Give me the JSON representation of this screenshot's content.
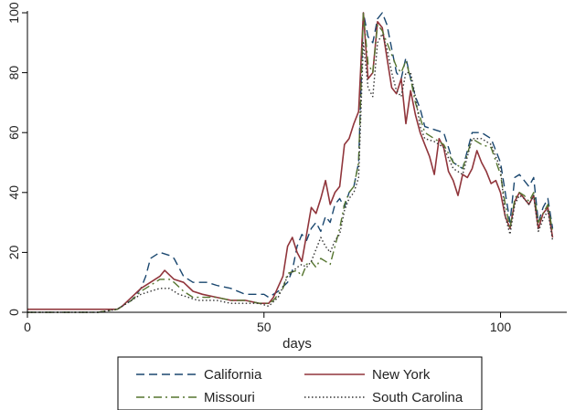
{
  "chart_data": {
    "type": "line",
    "title": "",
    "xlabel": "days",
    "ylabel": "",
    "xlim": [
      0,
      114
    ],
    "ylim": [
      0,
      100
    ],
    "xticks": [
      0,
      50,
      100
    ],
    "yticks": [
      0,
      20,
      40,
      60,
      80,
      100
    ],
    "grid": false,
    "legend_placement": "bottom",
    "series": [
      {
        "name": "California",
        "color": "#1a476f",
        "dash": "dashed",
        "points": [
          [
            0,
            1
          ],
          [
            5,
            1
          ],
          [
            10,
            1
          ],
          [
            15,
            1
          ],
          [
            19,
            1
          ],
          [
            20,
            2
          ],
          [
            22,
            4
          ],
          [
            24,
            8
          ],
          [
            25,
            12
          ],
          [
            26,
            18
          ],
          [
            28,
            20
          ],
          [
            30,
            19
          ],
          [
            31,
            18
          ],
          [
            33,
            12
          ],
          [
            35,
            10
          ],
          [
            38,
            10
          ],
          [
            40,
            9
          ],
          [
            43,
            8
          ],
          [
            46,
            6
          ],
          [
            50,
            6
          ],
          [
            51,
            5
          ],
          [
            53,
            7
          ],
          [
            55,
            10
          ],
          [
            56,
            14
          ],
          [
            57,
            22
          ],
          [
            58,
            26
          ],
          [
            59,
            24
          ],
          [
            60,
            28
          ],
          [
            61,
            30
          ],
          [
            62,
            27
          ],
          [
            63,
            32
          ],
          [
            64,
            30
          ],
          [
            65,
            36
          ],
          [
            66,
            38
          ],
          [
            67,
            35
          ],
          [
            68,
            40
          ],
          [
            69,
            42
          ],
          [
            70,
            50
          ],
          [
            71,
            100
          ],
          [
            72,
            92
          ],
          [
            73,
            90
          ],
          [
            74,
            98
          ],
          [
            75,
            100
          ],
          [
            76,
            96
          ],
          [
            77,
            88
          ],
          [
            78,
            80
          ],
          [
            79,
            78
          ],
          [
            80,
            85
          ],
          [
            81,
            78
          ],
          [
            82,
            72
          ],
          [
            83,
            68
          ],
          [
            84,
            62
          ],
          [
            86,
            61
          ],
          [
            88,
            60
          ],
          [
            90,
            50
          ],
          [
            92,
            48
          ],
          [
            94,
            60
          ],
          [
            96,
            60
          ],
          [
            98,
            58
          ],
          [
            100,
            50
          ],
          [
            101,
            40
          ],
          [
            102,
            30
          ],
          [
            103,
            45
          ],
          [
            104,
            46
          ],
          [
            105,
            44
          ],
          [
            106,
            42
          ],
          [
            107,
            45
          ],
          [
            108,
            30
          ],
          [
            109,
            35
          ],
          [
            110,
            38
          ],
          [
            111,
            28
          ]
        ]
      },
      {
        "name": "New York",
        "color": "#90353b",
        "dash": "solid",
        "points": [
          [
            0,
            1
          ],
          [
            5,
            1
          ],
          [
            10,
            1
          ],
          [
            15,
            1
          ],
          [
            19,
            1
          ],
          [
            20,
            2
          ],
          [
            22,
            5
          ],
          [
            24,
            8
          ],
          [
            26,
            10
          ],
          [
            28,
            12
          ],
          [
            29,
            14
          ],
          [
            31,
            11
          ],
          [
            33,
            10
          ],
          [
            35,
            7
          ],
          [
            37,
            6
          ],
          [
            40,
            5
          ],
          [
            43,
            4
          ],
          [
            46,
            4
          ],
          [
            49,
            3
          ],
          [
            51,
            3
          ],
          [
            52,
            5
          ],
          [
            54,
            12
          ],
          [
            55,
            22
          ],
          [
            56,
            25
          ],
          [
            57,
            20
          ],
          [
            58,
            17
          ],
          [
            59,
            26
          ],
          [
            60,
            35
          ],
          [
            61,
            33
          ],
          [
            62,
            38
          ],
          [
            63,
            44
          ],
          [
            64,
            36
          ],
          [
            65,
            40
          ],
          [
            66,
            42
          ],
          [
            67,
            56
          ],
          [
            68,
            58
          ],
          [
            69,
            63
          ],
          [
            70,
            67
          ],
          [
            71,
            100
          ],
          [
            72,
            78
          ],
          [
            73,
            80
          ],
          [
            74,
            97
          ],
          [
            75,
            95
          ],
          [
            76,
            85
          ],
          [
            77,
            75
          ],
          [
            78,
            73
          ],
          [
            79,
            78
          ],
          [
            80,
            63
          ],
          [
            81,
            74
          ],
          [
            82,
            66
          ],
          [
            83,
            60
          ],
          [
            84,
            56
          ],
          [
            85,
            52
          ],
          [
            86,
            46
          ],
          [
            87,
            58
          ],
          [
            88,
            55
          ],
          [
            89,
            47
          ],
          [
            90,
            44
          ],
          [
            91,
            39
          ],
          [
            92,
            46
          ],
          [
            93,
            45
          ],
          [
            94,
            48
          ],
          [
            95,
            54
          ],
          [
            96,
            50
          ],
          [
            97,
            47
          ],
          [
            98,
            43
          ],
          [
            99,
            44
          ],
          [
            100,
            40
          ],
          [
            101,
            32
          ],
          [
            102,
            28
          ],
          [
            103,
            37
          ],
          [
            104,
            40
          ],
          [
            105,
            38
          ],
          [
            106,
            36
          ],
          [
            107,
            39
          ],
          [
            108,
            28
          ],
          [
            109,
            33
          ],
          [
            110,
            35
          ],
          [
            111,
            25
          ]
        ]
      },
      {
        "name": "Missouri",
        "color": "#55752f",
        "dash": "dashdot",
        "points": [
          [
            0,
            0
          ],
          [
            5,
            0
          ],
          [
            10,
            0
          ],
          [
            15,
            0
          ],
          [
            19,
            1
          ],
          [
            20,
            2
          ],
          [
            22,
            4
          ],
          [
            24,
            7
          ],
          [
            26,
            9
          ],
          [
            28,
            11
          ],
          [
            30,
            11
          ],
          [
            31,
            10
          ],
          [
            33,
            7
          ],
          [
            35,
            5
          ],
          [
            37,
            5
          ],
          [
            40,
            5
          ],
          [
            43,
            4
          ],
          [
            46,
            4
          ],
          [
            49,
            3
          ],
          [
            51,
            3
          ],
          [
            52,
            4
          ],
          [
            54,
            8
          ],
          [
            55,
            13
          ],
          [
            57,
            14
          ],
          [
            58,
            12
          ],
          [
            59,
            16
          ],
          [
            60,
            17
          ],
          [
            61,
            15
          ],
          [
            62,
            18
          ],
          [
            63,
            17
          ],
          [
            64,
            16
          ],
          [
            65,
            22
          ],
          [
            66,
            28
          ],
          [
            67,
            36
          ],
          [
            68,
            40
          ],
          [
            69,
            42
          ],
          [
            70,
            50
          ],
          [
            71,
            100
          ],
          [
            72,
            83
          ],
          [
            73,
            80
          ],
          [
            74,
            96
          ],
          [
            75,
            94
          ],
          [
            76,
            90
          ],
          [
            77,
            86
          ],
          [
            78,
            82
          ],
          [
            79,
            80
          ],
          [
            80,
            84
          ],
          [
            81,
            78
          ],
          [
            82,
            70
          ],
          [
            83,
            65
          ],
          [
            84,
            60
          ],
          [
            86,
            58
          ],
          [
            88,
            56
          ],
          [
            90,
            50
          ],
          [
            92,
            48
          ],
          [
            94,
            58
          ],
          [
            96,
            56
          ],
          [
            98,
            55
          ],
          [
            100,
            46
          ],
          [
            101,
            36
          ],
          [
            102,
            28
          ],
          [
            103,
            38
          ],
          [
            104,
            40
          ],
          [
            105,
            39
          ],
          [
            106,
            37
          ],
          [
            107,
            40
          ],
          [
            108,
            30
          ],
          [
            109,
            33
          ],
          [
            110,
            36
          ],
          [
            111,
            27
          ]
        ]
      },
      {
        "name": "South Carolina",
        "color": "#333333",
        "dash": "dotted",
        "points": [
          [
            0,
            0
          ],
          [
            5,
            0
          ],
          [
            10,
            0
          ],
          [
            15,
            0
          ],
          [
            19,
            1
          ],
          [
            20,
            2
          ],
          [
            22,
            4
          ],
          [
            24,
            6
          ],
          [
            26,
            7
          ],
          [
            28,
            8
          ],
          [
            30,
            8
          ],
          [
            32,
            6
          ],
          [
            34,
            5
          ],
          [
            36,
            4
          ],
          [
            38,
            4
          ],
          [
            40,
            4
          ],
          [
            43,
            3
          ],
          [
            46,
            3
          ],
          [
            49,
            3
          ],
          [
            51,
            2
          ],
          [
            53,
            5
          ],
          [
            55,
            12
          ],
          [
            57,
            15
          ],
          [
            58,
            16
          ],
          [
            59,
            15
          ],
          [
            60,
            17
          ],
          [
            61,
            21
          ],
          [
            62,
            25
          ],
          [
            63,
            22
          ],
          [
            64,
            20
          ],
          [
            65,
            24
          ],
          [
            66,
            26
          ],
          [
            67,
            34
          ],
          [
            68,
            38
          ],
          [
            69,
            40
          ],
          [
            70,
            45
          ],
          [
            71,
            90
          ],
          [
            72,
            75
          ],
          [
            73,
            72
          ],
          [
            74,
            90
          ],
          [
            75,
            93
          ],
          [
            76,
            88
          ],
          [
            77,
            80
          ],
          [
            78,
            74
          ],
          [
            79,
            72
          ],
          [
            80,
            80
          ],
          [
            81,
            80
          ],
          [
            82,
            72
          ],
          [
            83,
            62
          ],
          [
            84,
            58
          ],
          [
            86,
            57
          ],
          [
            88,
            55
          ],
          [
            90,
            48
          ],
          [
            92,
            46
          ],
          [
            94,
            58
          ],
          [
            96,
            58
          ],
          [
            98,
            56
          ],
          [
            100,
            48
          ],
          [
            101,
            32
          ],
          [
            102,
            26
          ],
          [
            103,
            36
          ],
          [
            104,
            39
          ],
          [
            105,
            38
          ],
          [
            106,
            36
          ],
          [
            107,
            39
          ],
          [
            108,
            27
          ],
          [
            109,
            31
          ],
          [
            110,
            34
          ],
          [
            111,
            24
          ]
        ]
      }
    ]
  }
}
